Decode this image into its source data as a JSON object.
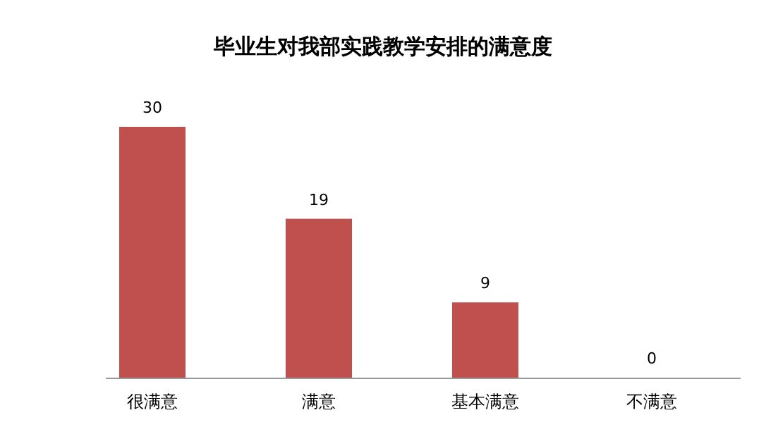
{
  "chart_data": {
    "type": "bar",
    "title": "毕业生对我部实践教学安排的满意度",
    "categories": [
      "很满意",
      "满意",
      "基本满意",
      "不满意"
    ],
    "values": [
      30,
      19,
      9,
      0
    ],
    "color": "#c0504d",
    "data_labels": true
  }
}
